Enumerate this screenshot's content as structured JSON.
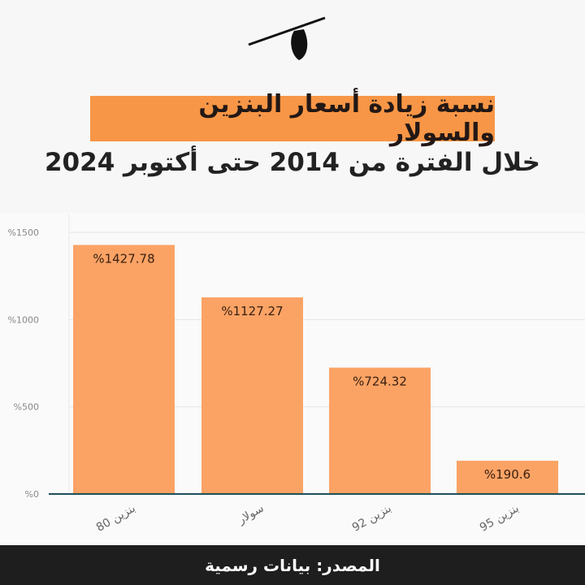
{
  "header": {
    "title": "نسبة زيادة أسعار البنزين والسولار",
    "subtitle": "خلال الفترة من 2014 حتى أكتوبر 2024",
    "accent_color": "#f79646"
  },
  "footer": {
    "source": "المصدر: بيانات رسمية"
  },
  "chart_data": {
    "type": "bar",
    "categories": [
      "بنزين 80",
      "سولار",
      "بنزين 92",
      "بنزين 95"
    ],
    "values": [
      1427.78,
      1127.27,
      724.32,
      190.6
    ],
    "data_labels": [
      "%1427.78",
      "%1127.27",
      "%724.32",
      "%190.6"
    ],
    "yticks": [
      0,
      500,
      1000,
      1500
    ],
    "ytick_labels": [
      "%0",
      "%500",
      "%1000",
      "%1500"
    ],
    "ylim": [
      0,
      1500
    ],
    "grid": true,
    "bar_color": "#fba365",
    "title": "نسبة زيادة أسعار البنزين والسولار",
    "xlabel": "",
    "ylabel": ""
  }
}
